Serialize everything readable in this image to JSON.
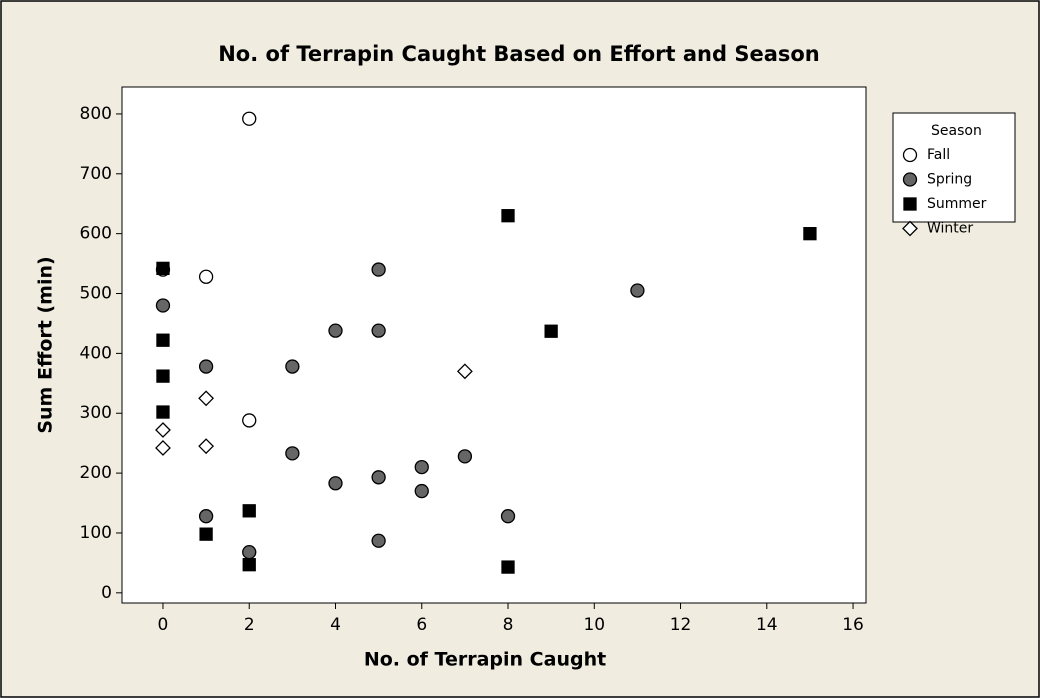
{
  "chart_data": {
    "type": "scatter",
    "title": "No. of Terrapin Caught Based on Effort and Season",
    "x_label": "No. of Terrapin Caught",
    "y_label": "Sum Effort (min)",
    "legend_title": "Season",
    "legend_position": "right",
    "xlim": [
      -0.95,
      16.3
    ],
    "ylim": [
      -17,
      845
    ],
    "xticks": [
      0,
      2,
      4,
      6,
      8,
      10,
      12,
      14,
      16
    ],
    "yticks": [
      0,
      100,
      200,
      300,
      400,
      500,
      600,
      700,
      800
    ],
    "series": [
      {
        "name": "Fall",
        "color": "#ffffff",
        "marker": "circle",
        "x": [
          2,
          1,
          2,
          0
        ],
        "values": [
          792,
          528,
          288,
          540
        ]
      },
      {
        "name": "Spring",
        "color": "#666666",
        "marker": "circle",
        "x": [
          0,
          1,
          1,
          2,
          3,
          3,
          4,
          4,
          5,
          5,
          5,
          5,
          6,
          6,
          7,
          8,
          11
        ],
        "values": [
          480,
          378,
          128,
          68,
          378,
          233,
          438,
          183,
          540,
          438,
          193,
          87,
          210,
          170,
          228,
          128,
          505
        ]
      },
      {
        "name": "Summer",
        "color": "#000000",
        "marker": "square",
        "x": [
          0,
          0,
          0,
          0,
          1,
          2,
          2,
          8,
          8,
          9,
          15
        ],
        "values": [
          542,
          422,
          362,
          302,
          98,
          137,
          47,
          630,
          43,
          437,
          600
        ]
      },
      {
        "name": "Winter",
        "color": "#ffffff",
        "marker": "diamond",
        "x": [
          0,
          0,
          1,
          1,
          7
        ],
        "values": [
          272,
          242,
          325,
          245,
          370
        ]
      }
    ]
  }
}
